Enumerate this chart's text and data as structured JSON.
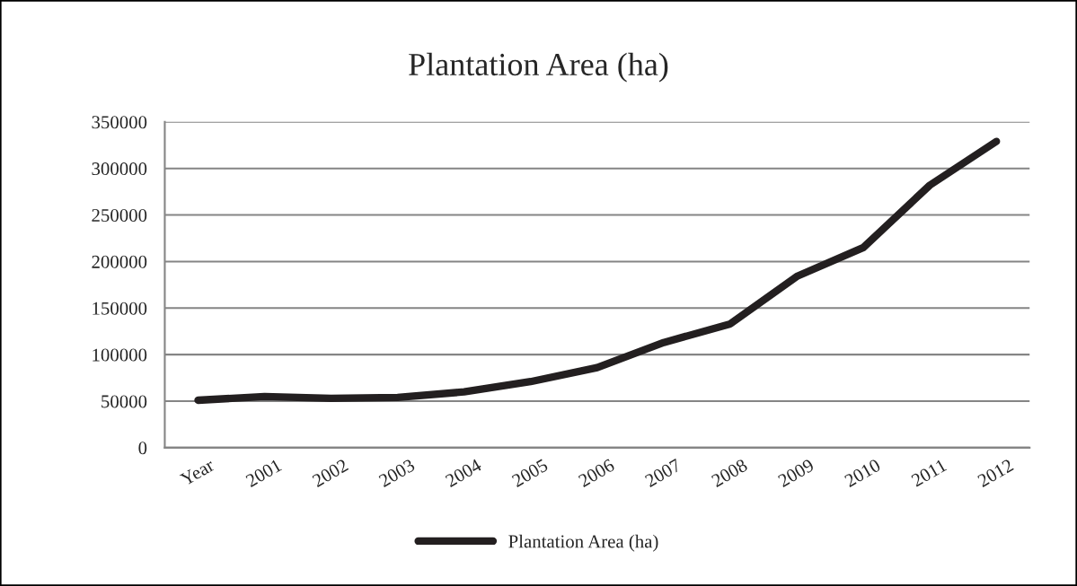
{
  "chart_data": {
    "type": "line",
    "title": "Plantation Area (ha)",
    "categories": [
      "Year",
      "2001",
      "2002",
      "2003",
      "2004",
      "2005",
      "2006",
      "2007",
      "2008",
      "2009",
      "2010",
      "2011",
      "2012"
    ],
    "series": [
      {
        "name": "Plantation Area (ha)",
        "color": "#231f20",
        "values": [
          51000,
          55000,
          53000,
          54000,
          60000,
          71000,
          86000,
          113000,
          133000,
          184000,
          215000,
          282000,
          329000
        ]
      }
    ],
    "ylim": [
      0,
      350000
    ],
    "yticks": [
      0,
      50000,
      100000,
      150000,
      200000,
      250000,
      300000,
      350000
    ],
    "grid": "y",
    "legend": "bottom",
    "marker": "none",
    "line_style": "solid"
  }
}
